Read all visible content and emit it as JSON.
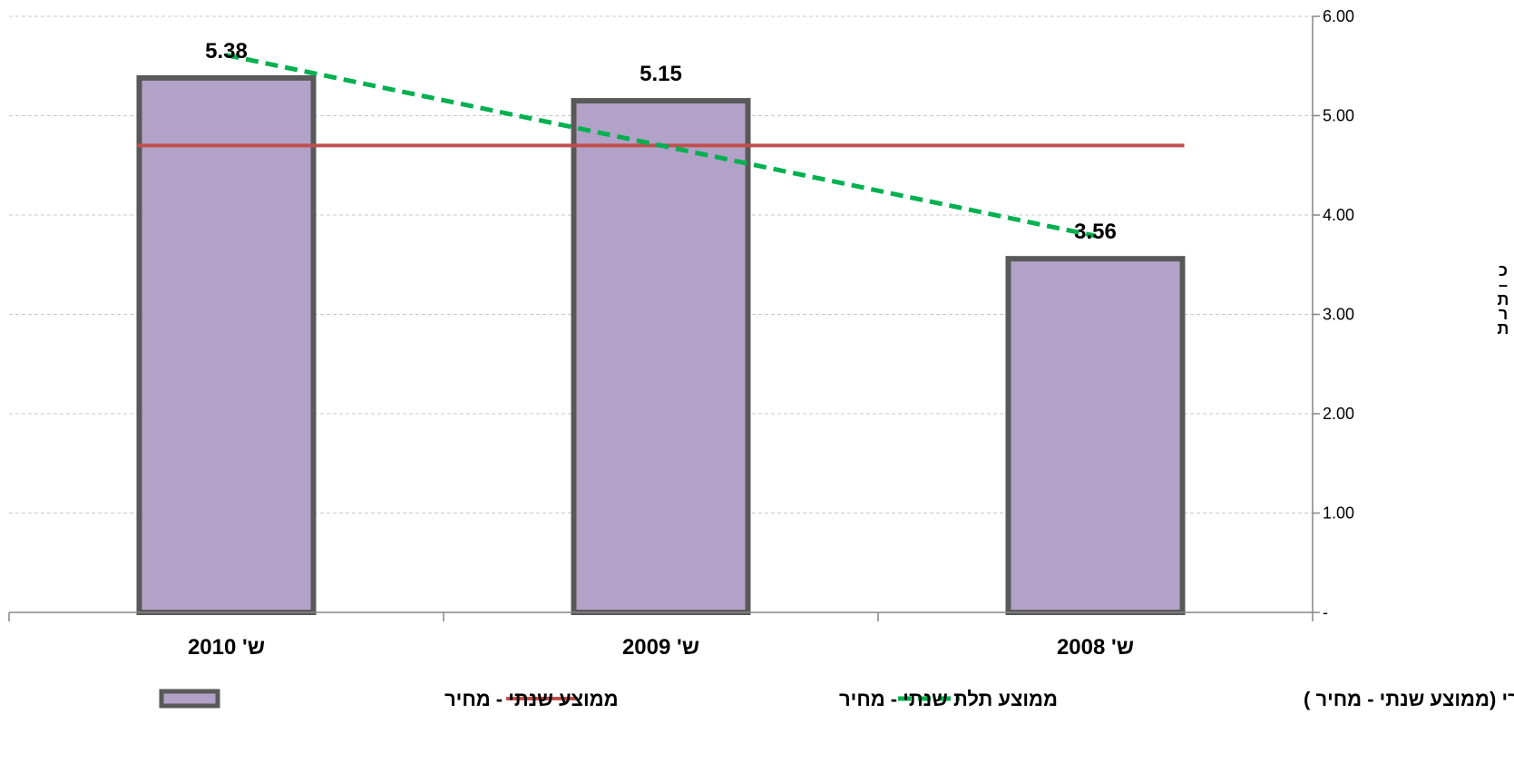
{
  "chart_data": {
    "type": "bar",
    "categories": [
      "ש' 2010",
      "ש' 2009",
      "ש' 2008"
    ],
    "series": [
      {
        "name": "ממוצע שנתי - מחיר",
        "type": "bar",
        "values": [
          5.38,
          5.15,
          3.56
        ],
        "data_labels": [
          "5.38",
          "5.15",
          "3.56"
        ],
        "color": "#b3a2c7",
        "border_color": "#595959"
      },
      {
        "name": "ממוצע תלת שנתי - מחיר",
        "type": "line",
        "values": [
          4.7,
          4.7,
          4.7
        ],
        "color": "#c0504d"
      },
      {
        "name": "ליניארי (ממוצע שנתי - מחיר )",
        "type": "trendline",
        "style": "dashed",
        "values": [
          5.61,
          4.7,
          3.79
        ],
        "color": "#00b050"
      }
    ],
    "y_axis": {
      "position": "right",
      "ylim": [
        0,
        6
      ],
      "ticks": [
        0,
        1,
        2,
        3,
        4,
        5,
        6
      ],
      "tick_labels": [
        "-",
        "1.00",
        "2.00",
        "3.00",
        "4.00",
        "5.00",
        "6.00"
      ],
      "label_chars": [
        "כ",
        "–",
        "ת",
        "ר",
        "ת"
      ]
    },
    "grid": true,
    "legend_position": "bottom"
  }
}
